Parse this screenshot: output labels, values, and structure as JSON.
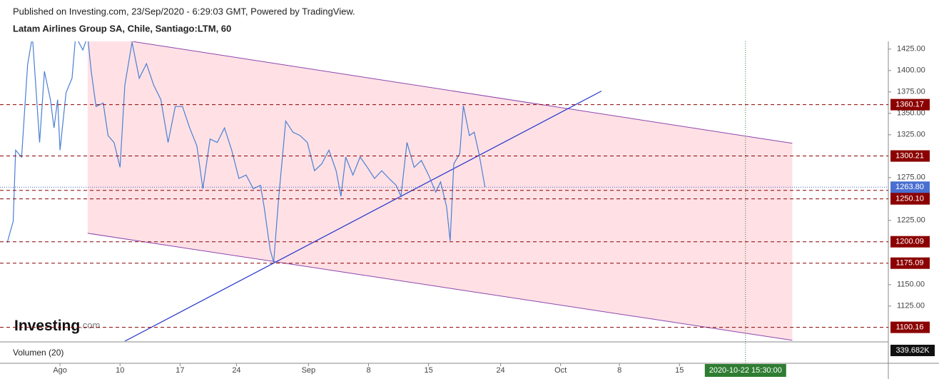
{
  "header": {
    "published": "Published on Investing.com, 23/Sep/2020 - 6:29:03 GMT, Powered by TradingView.",
    "symbol": "Latam Airlines Group SA, Chile, Santiago:LTM, 60"
  },
  "logo": {
    "name": "Investing",
    "suffix": ".com"
  },
  "chart_data": {
    "type": "line",
    "color": "#4a7fd4",
    "x": [
      -4.4,
      -3.9,
      -3.7,
      -3.2,
      -2.7,
      -2.3,
      -1.7,
      -1.3,
      -0.8,
      -0.5,
      -0.2,
      0,
      0.5,
      1.0,
      1.3,
      1.9,
      2.3,
      2.6,
      3.0,
      3.6,
      4.0,
      4.5,
      5.0,
      5.4,
      6.0,
      6.6,
      7.2,
      7.8,
      8.4,
      9.0,
      9.6,
      10.2,
      10.8,
      11.4,
      11.9,
      12.5,
      13.1,
      13.7,
      14.3,
      14.9,
      15.5,
      16.1,
      16.7,
      17.0,
      17.5,
      17.8,
      18.2,
      18.8,
      19.4,
      20.0,
      20.6,
      21.2,
      21.8,
      22.4,
      23.0,
      23.4,
      23.8,
      24.4,
      25.0,
      25.6,
      26.2,
      26.8,
      27.4,
      28.0,
      28.4,
      28.9,
      29.5,
      30.1,
      30.7,
      31.3,
      31.7,
      32.2,
      32.5,
      32.8,
      33.3,
      33.6,
      34.1,
      34.5,
      34.9,
      35.4
    ],
    "values": [
      1199,
      1224,
      1307,
      1299,
      1407,
      1440,
      1316,
      1399,
      1366,
      1333,
      1366,
      1307,
      1374,
      1391,
      1440,
      1424,
      1440,
      1399,
      1358,
      1362,
      1324,
      1316,
      1287,
      1383,
      1433,
      1391,
      1408,
      1383,
      1366,
      1316,
      1358,
      1358,
      1333,
      1312,
      1262,
      1320,
      1316,
      1333,
      1307,
      1274,
      1278,
      1262,
      1266,
      1241,
      1191,
      1176,
      1249,
      1341,
      1328,
      1324,
      1316,
      1283,
      1291,
      1307,
      1283,
      1253,
      1299,
      1278,
      1299,
      1287,
      1274,
      1283,
      1274,
      1266,
      1253,
      1316,
      1287,
      1295,
      1278,
      1258,
      1270,
      1241,
      1201,
      1291,
      1303,
      1359,
      1324,
      1328,
      1303,
      1264
    ],
    "xlim": [
      -5,
      69
    ],
    "ylim": [
      1084,
      1434
    ],
    "xticks": [
      {
        "value": 0,
        "label": "Ago"
      },
      {
        "value": 5,
        "label": "10"
      },
      {
        "value": 10,
        "label": "17"
      },
      {
        "value": 14.7,
        "label": "24"
      },
      {
        "value": 20.7,
        "label": "Sep"
      },
      {
        "value": 25.7,
        "label": "8"
      },
      {
        "value": 30.7,
        "label": "15"
      },
      {
        "value": 36.7,
        "label": "24"
      },
      {
        "value": 41.7,
        "label": "Oct"
      },
      {
        "value": 46.6,
        "label": "8"
      },
      {
        "value": 51.6,
        "label": "15"
      }
    ],
    "yticks": [
      {
        "value": 1425,
        "label": "1425.00"
      },
      {
        "value": 1400,
        "label": "1400.00"
      },
      {
        "value": 1375,
        "label": "1375.00"
      },
      {
        "value": 1350,
        "label": "1350.00"
      },
      {
        "value": 1325,
        "label": "1325.00"
      },
      {
        "value": 1275,
        "label": "1275.00"
      },
      {
        "value": 1225,
        "label": "1225.00"
      },
      {
        "value": 1150,
        "label": "1150.00"
      },
      {
        "value": 1125,
        "label": "1125.00"
      }
    ],
    "levels": [
      1360.17,
      1300.21,
      1260.08,
      {
        "value": 1250.1,
        "label": "1250.10"
      },
      1200.09,
      1175.09,
      1100.16
    ],
    "last": {
      "value": 1263.8,
      "label": "1263.80"
    },
    "channel": {
      "upper": [
        [
          2.3,
          1442
        ],
        [
          61,
          1315
        ]
      ],
      "lower": [
        [
          2.3,
          1210
        ],
        [
          61,
          1085
        ]
      ]
    },
    "trendline": [
      [
        5.4,
        1084
      ],
      [
        45.1,
        1376
      ]
    ],
    "marker": {
      "x": 57.1,
      "label": "2020-10-22 15:30:00"
    },
    "volume": {
      "label": "Volumen (20)",
      "last": {
        "value": 339682,
        "label": "339.682K"
      }
    }
  }
}
